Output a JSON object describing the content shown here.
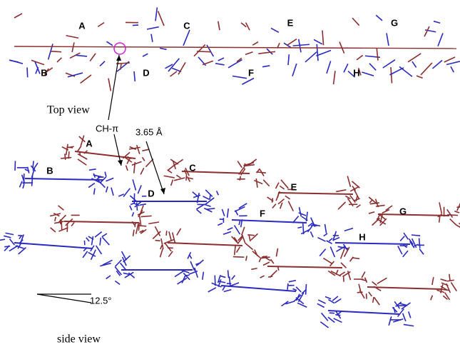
{
  "top_view": {
    "labels": [
      "A",
      "B",
      "C",
      "D",
      "E",
      "F",
      "G",
      "H"
    ],
    "caption": "Top view",
    "annotation": "CH-π"
  },
  "side_view": {
    "labels": [
      "A",
      "B",
      "C",
      "D",
      "E",
      "F",
      "G",
      "H"
    ],
    "distance": "3.65 Å",
    "angle": "12.5°",
    "caption": "side view"
  }
}
